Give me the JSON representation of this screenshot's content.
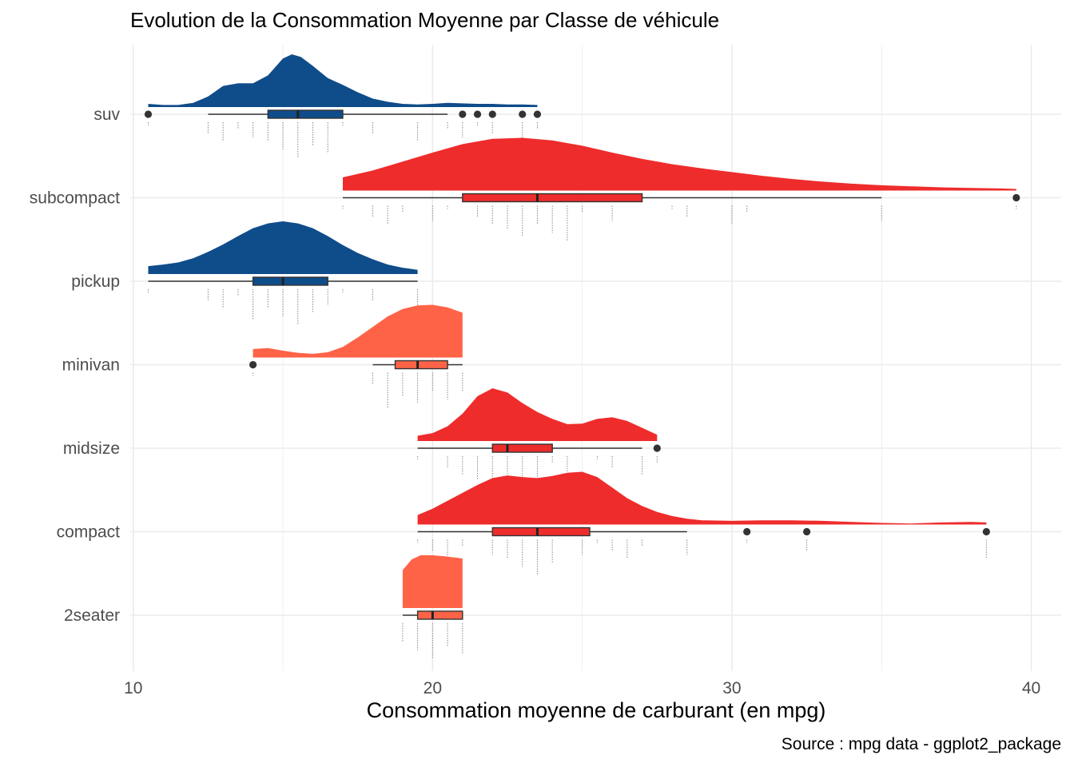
{
  "chart_data": {
    "type": "raincloud",
    "title": "Evolution de la Consommation Moyenne par Classe de véhicule",
    "xlabel": "Consommation moyenne de carburant (en mpg)",
    "ylabel": "",
    "caption": "Source : mpg data - ggplot2_package",
    "xlim": [
      9.9,
      41
    ],
    "x_ticks": [
      10,
      20,
      30,
      40
    ],
    "grid": true,
    "legend": "none",
    "colors": {
      "dark_blue": "#0f4c8a",
      "red": "#ee2c2c",
      "light_red": "#ff6347"
    },
    "categories": [
      "suv",
      "subcompact",
      "pickup",
      "minivan",
      "midsize",
      "compact",
      "2seater"
    ],
    "series": [
      {
        "class": "suv",
        "color": "#0f4c8a",
        "min": 10.5,
        "q1": 14.5,
        "median": 15.5,
        "q3": 17,
        "max": 23.5,
        "whisker_low": 12.5,
        "whisker_high": 20.5,
        "outliers": [
          10.5,
          21,
          21.5,
          22,
          23,
          23.5
        ],
        "observations": [
          10.5,
          12.5,
          13,
          13.5,
          14,
          14.5,
          15,
          15.5,
          16,
          16.5,
          17,
          18,
          19.5,
          20.5,
          21,
          21.5,
          22,
          23,
          23.5
        ],
        "density": [
          [
            10.5,
            0.06
          ],
          [
            11,
            0.04
          ],
          [
            11.5,
            0.04
          ],
          [
            12,
            0.08
          ],
          [
            12.5,
            0.2
          ],
          [
            13,
            0.4
          ],
          [
            13.5,
            0.45
          ],
          [
            14,
            0.45
          ],
          [
            14.5,
            0.6
          ],
          [
            15,
            0.92
          ],
          [
            15.3,
            1
          ],
          [
            15.6,
            0.95
          ],
          [
            16,
            0.78
          ],
          [
            16.5,
            0.55
          ],
          [
            17,
            0.42
          ],
          [
            17.5,
            0.28
          ],
          [
            18,
            0.16
          ],
          [
            18.5,
            0.1
          ],
          [
            19,
            0.06
          ],
          [
            19.5,
            0.05
          ],
          [
            20,
            0.06
          ],
          [
            20.5,
            0.08
          ],
          [
            21,
            0.07
          ],
          [
            21.5,
            0.06
          ],
          [
            22,
            0.06
          ],
          [
            22.5,
            0.05
          ],
          [
            23,
            0.05
          ],
          [
            23.5,
            0.04
          ]
        ]
      },
      {
        "class": "subcompact",
        "color": "#ee2c2c",
        "min": 17,
        "q1": 21,
        "median": 23.5,
        "q3": 27,
        "max": 39.5,
        "whisker_low": 17,
        "whisker_high": 35,
        "outliers": [
          39.5
        ],
        "observations": [
          17,
          18,
          18.5,
          19,
          20,
          20.5,
          21.5,
          22,
          22.5,
          23,
          23.5,
          24,
          24.5,
          25,
          26,
          28,
          28.5,
          30,
          30.5,
          35,
          39.5
        ],
        "density": [
          [
            17,
            0.25
          ],
          [
            18,
            0.38
          ],
          [
            19,
            0.55
          ],
          [
            20,
            0.72
          ],
          [
            21,
            0.88
          ],
          [
            22,
            0.98
          ],
          [
            23,
            1
          ],
          [
            24,
            0.95
          ],
          [
            25,
            0.85
          ],
          [
            26,
            0.72
          ],
          [
            27,
            0.6
          ],
          [
            28,
            0.5
          ],
          [
            29,
            0.42
          ],
          [
            30,
            0.35
          ],
          [
            31,
            0.28
          ],
          [
            32,
            0.22
          ],
          [
            33,
            0.17
          ],
          [
            34,
            0.13
          ],
          [
            35,
            0.1
          ],
          [
            36,
            0.08
          ],
          [
            37,
            0.06
          ],
          [
            38,
            0.05
          ],
          [
            39,
            0.04
          ],
          [
            39.5,
            0.03
          ]
        ]
      },
      {
        "class": "pickup",
        "color": "#0f4c8a",
        "min": 10.5,
        "q1": 14,
        "median": 15,
        "q3": 16.5,
        "max": 19.5,
        "whisker_low": 10.5,
        "whisker_high": 19.5,
        "outliers": [],
        "observations": [
          10.5,
          12.5,
          13,
          13.5,
          14,
          14.5,
          15,
          15.5,
          16,
          16.5,
          17,
          18,
          19.5
        ],
        "density": [
          [
            10.5,
            0.15
          ],
          [
            11,
            0.18
          ],
          [
            11.5,
            0.22
          ],
          [
            12,
            0.3
          ],
          [
            12.5,
            0.42
          ],
          [
            13,
            0.56
          ],
          [
            13.5,
            0.72
          ],
          [
            14,
            0.87
          ],
          [
            14.5,
            0.96
          ],
          [
            15,
            1
          ],
          [
            15.5,
            0.96
          ],
          [
            16,
            0.87
          ],
          [
            16.5,
            0.72
          ],
          [
            17,
            0.55
          ],
          [
            17.5,
            0.4
          ],
          [
            18,
            0.28
          ],
          [
            18.5,
            0.18
          ],
          [
            19,
            0.12
          ],
          [
            19.5,
            0.08
          ]
        ]
      },
      {
        "class": "minivan",
        "color": "#ff6347",
        "min": 14,
        "q1": 18.75,
        "median": 19.5,
        "q3": 20.5,
        "max": 21,
        "whisker_low": 18,
        "whisker_high": 21,
        "outliers": [
          14
        ],
        "observations": [
          14,
          18,
          18.5,
          19,
          19.5,
          20,
          20.5,
          21
        ],
        "density": [
          [
            14,
            0.16
          ],
          [
            14.5,
            0.18
          ],
          [
            15,
            0.13
          ],
          [
            15.5,
            0.09
          ],
          [
            16,
            0.07
          ],
          [
            16.5,
            0.1
          ],
          [
            17,
            0.2
          ],
          [
            17.5,
            0.38
          ],
          [
            18,
            0.58
          ],
          [
            18.5,
            0.78
          ],
          [
            19,
            0.92
          ],
          [
            19.5,
            0.99
          ],
          [
            20,
            1
          ],
          [
            20.5,
            0.95
          ],
          [
            21,
            0.85
          ]
        ]
      },
      {
        "class": "midsize",
        "color": "#ee2c2c",
        "min": 19.5,
        "q1": 22,
        "median": 22.5,
        "q3": 24,
        "max": 27.5,
        "whisker_low": 19.5,
        "whisker_high": 27,
        "outliers": [
          27.5
        ],
        "observations": [
          19.5,
          20.5,
          21,
          21.5,
          22,
          22.5,
          23,
          23.5,
          24,
          24.5,
          25.5,
          26,
          27,
          27.5
        ],
        "density": [
          [
            19.5,
            0.1
          ],
          [
            20,
            0.15
          ],
          [
            20.5,
            0.28
          ],
          [
            21,
            0.52
          ],
          [
            21.5,
            0.85
          ],
          [
            22,
            1
          ],
          [
            22.5,
            0.92
          ],
          [
            23,
            0.72
          ],
          [
            23.5,
            0.55
          ],
          [
            24,
            0.42
          ],
          [
            24.5,
            0.32
          ],
          [
            25,
            0.33
          ],
          [
            25.5,
            0.42
          ],
          [
            26,
            0.45
          ],
          [
            26.5,
            0.38
          ],
          [
            27,
            0.25
          ],
          [
            27.5,
            0.12
          ]
        ]
      },
      {
        "class": "compact",
        "color": "#ee2c2c",
        "min": 19.5,
        "q1": 22,
        "median": 23.5,
        "q3": 25.25,
        "max": 38.5,
        "whisker_low": 19.5,
        "whisker_high": 28.5,
        "outliers": [
          30.5,
          32.5,
          38.5
        ],
        "observations": [
          19.5,
          20,
          20.5,
          21,
          22,
          22.5,
          23,
          23.5,
          24,
          25,
          25.5,
          26,
          26.5,
          27,
          28.5,
          30.5,
          32.5,
          38.5
        ],
        "density": [
          [
            19.5,
            0.18
          ],
          [
            20,
            0.3
          ],
          [
            20.5,
            0.45
          ],
          [
            21,
            0.6
          ],
          [
            21.5,
            0.75
          ],
          [
            22,
            0.88
          ],
          [
            22.5,
            0.93
          ],
          [
            23,
            0.9
          ],
          [
            23.5,
            0.88
          ],
          [
            24,
            0.92
          ],
          [
            24.5,
            0.98
          ],
          [
            25,
            1
          ],
          [
            25.5,
            0.9
          ],
          [
            26,
            0.7
          ],
          [
            26.5,
            0.5
          ],
          [
            27,
            0.35
          ],
          [
            27.5,
            0.24
          ],
          [
            28,
            0.16
          ],
          [
            28.5,
            0.11
          ],
          [
            29,
            0.08
          ],
          [
            30,
            0.07
          ],
          [
            31,
            0.08
          ],
          [
            32,
            0.08
          ],
          [
            33,
            0.07
          ],
          [
            34,
            0.05
          ],
          [
            35,
            0.03
          ],
          [
            36,
            0.02
          ],
          [
            37,
            0.04
          ],
          [
            38,
            0.05
          ],
          [
            38.5,
            0.04
          ]
        ]
      },
      {
        "class": "2seater",
        "color": "#ff6347",
        "min": 19,
        "q1": 19.5,
        "median": 20,
        "q3": 21,
        "max": 21,
        "whisker_low": 19,
        "whisker_high": 21,
        "outliers": [],
        "observations": [
          19,
          19.5,
          20,
          20.5,
          21
        ],
        "density": [
          [
            19,
            0.72
          ],
          [
            19.3,
            0.92
          ],
          [
            19.6,
            1
          ],
          [
            20,
            1
          ],
          [
            20.4,
            0.98
          ],
          [
            20.7,
            0.96
          ],
          [
            21,
            0.94
          ]
        ]
      }
    ]
  }
}
